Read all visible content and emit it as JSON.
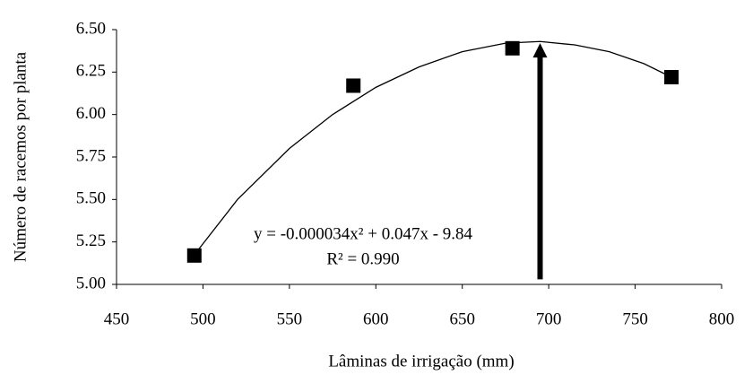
{
  "chart_data": {
    "type": "scatter",
    "x_label": "Lâminas de irrigação (mm)",
    "y_label": "Número de racemos por planta",
    "x": [
      495,
      587,
      679,
      771
    ],
    "values": [
      5.17,
      6.17,
      6.39,
      6.22
    ],
    "color": "#000000",
    "trendline": {
      "x": [
        497,
        520,
        550,
        575,
        600,
        625,
        650,
        675,
        695,
        715,
        735,
        755,
        771
      ],
      "values": [
        5.2,
        5.5,
        5.8,
        6.0,
        6.16,
        6.28,
        6.37,
        6.42,
        6.43,
        6.41,
        6.37,
        6.3,
        6.22
      ]
    },
    "equation": "y = -0.000034x² + 0.047x - 9.84",
    "r_squared": "R² = 0.990",
    "arrow": {
      "x": 695,
      "y": [
        5.03,
        6.42
      ]
    },
    "xlim": [
      450,
      800
    ],
    "xticks": [
      450,
      500,
      550,
      600,
      650,
      700,
      750,
      800
    ],
    "ylim": [
      5,
      6.5
    ],
    "yticks": [
      {
        "value": 5,
        "label": "5.00"
      },
      5.25,
      {
        "value": 5.5,
        "label": "5.50"
      },
      5.75,
      {
        "value": 6,
        "label": "6.00"
      },
      6.25,
      {
        "value": 6.5,
        "label": "6.50"
      }
    ]
  }
}
